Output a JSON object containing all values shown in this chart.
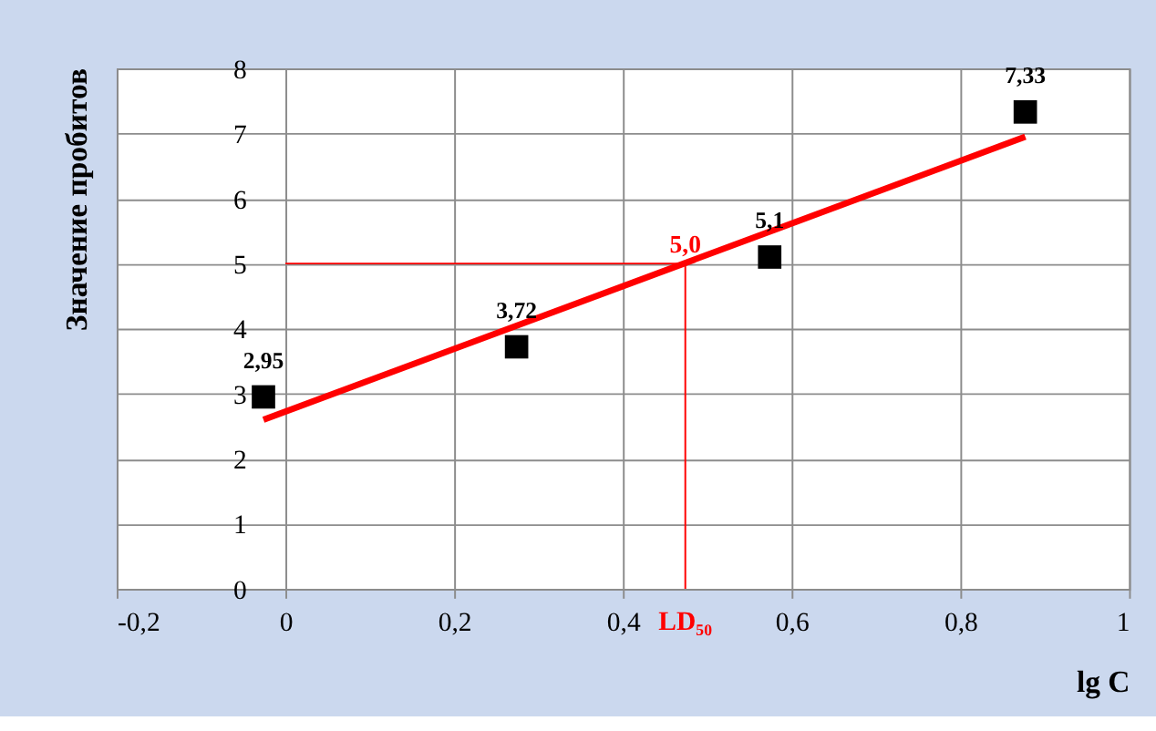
{
  "chart_data": {
    "type": "scatter",
    "xlabel": "lg C",
    "ylabel": "Значение пробитов",
    "xlim": [
      -0.2,
      1
    ],
    "ylim": [
      0,
      8
    ],
    "xticks": [
      {
        "value": -0.2,
        "label": "-0,2"
      },
      {
        "value": 0,
        "label": "0"
      },
      {
        "value": 0.2,
        "label": "0,2"
      },
      {
        "value": 0.4,
        "label": "0,4"
      },
      {
        "value": 0.6,
        "label": "0,6"
      },
      {
        "value": 0.8,
        "label": "0,8"
      },
      {
        "value": 1,
        "label": "1"
      }
    ],
    "yticks": [
      0,
      1,
      2,
      3,
      4,
      5,
      6,
      7,
      8
    ],
    "grid": true,
    "series": [
      {
        "type": "scatter",
        "color": "#000000",
        "marker": "square",
        "x": [
          -0.026,
          0.274,
          0.574,
          0.877
        ],
        "values": [
          2.95,
          3.72,
          5.1,
          7.33
        ],
        "value_labels": [
          "2,95",
          "3,72",
          "5,1",
          "7,33"
        ]
      },
      {
        "type": "line",
        "color": "#ff0000",
        "marker": "none",
        "line_style": "solid",
        "x": [
          -0.026,
          0.877
        ],
        "values": [
          2.6,
          6.95
        ]
      }
    ],
    "ref_lines": [
      {
        "axis": "y",
        "value": 5,
        "color": "#ff0000"
      },
      {
        "axis": "x",
        "value": 0.474,
        "label": "LD₅₀",
        "color": "#ff0000"
      }
    ],
    "annotations": [
      {
        "text": "5,0",
        "x": 0.474,
        "y": 5
      }
    ]
  }
}
